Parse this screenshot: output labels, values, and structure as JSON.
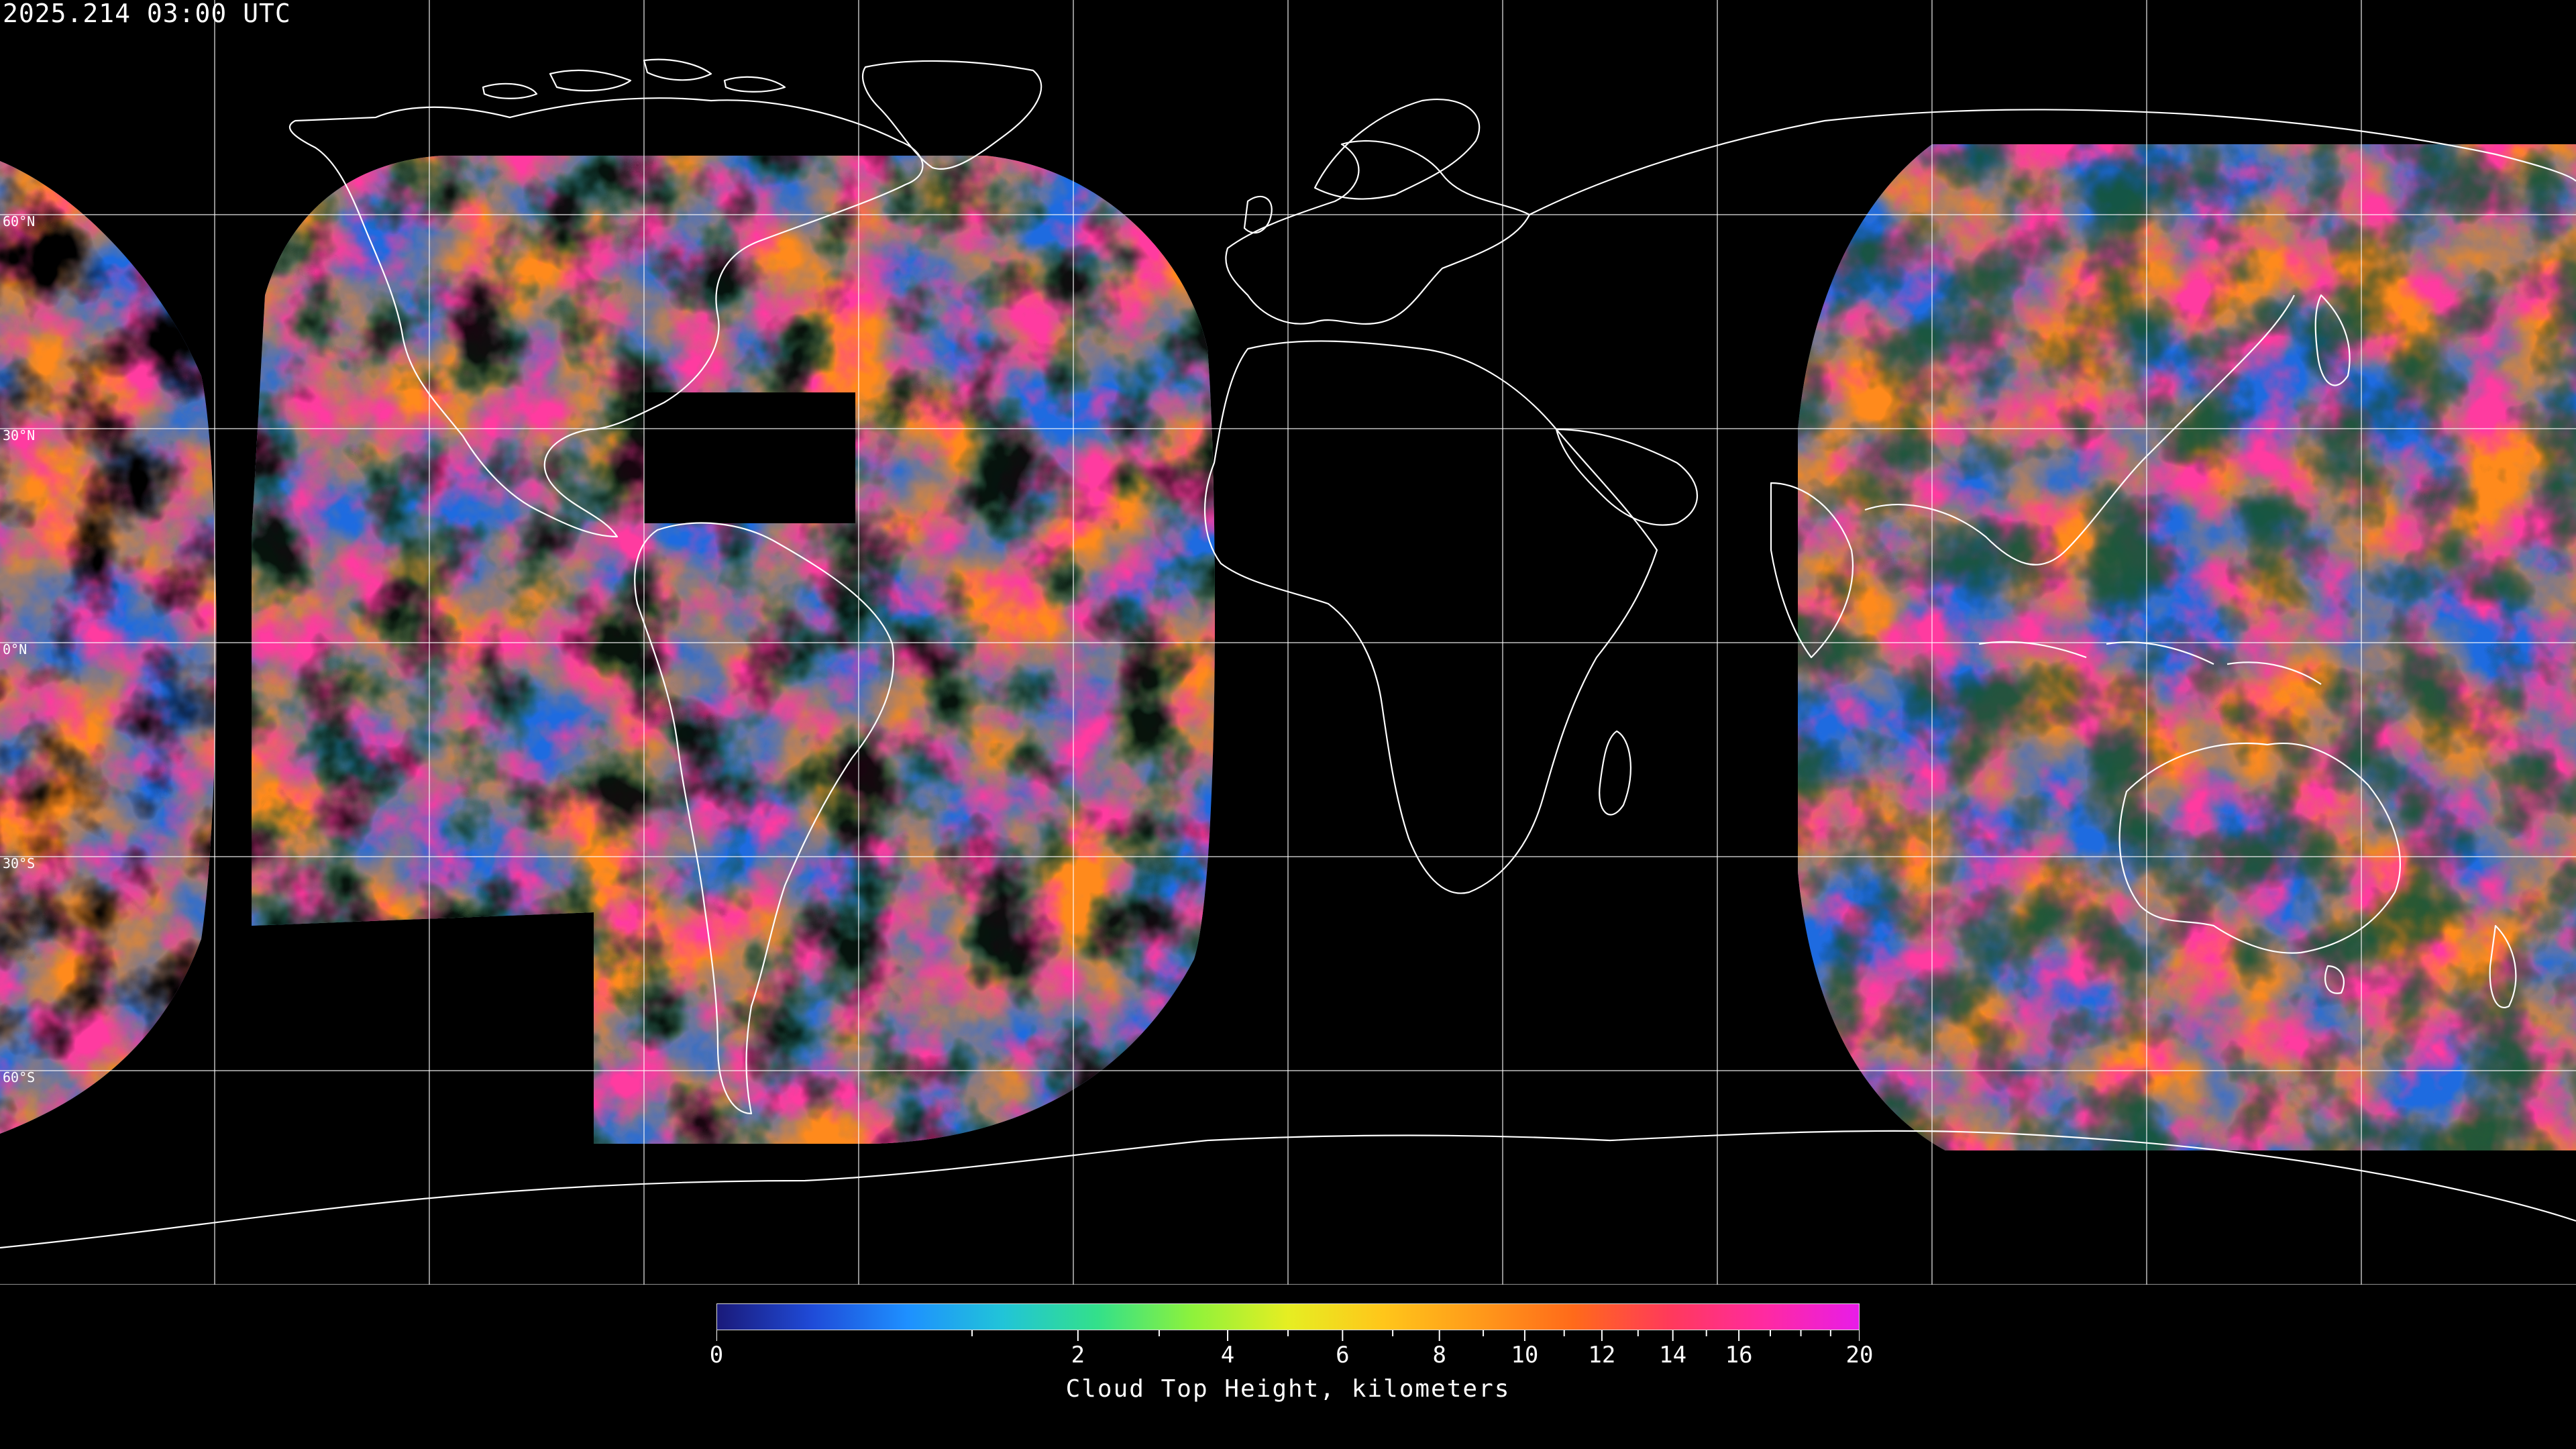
{
  "header": {
    "timestamp": "2025.214 03:00 UTC"
  },
  "map": {
    "projection": "equirectangular",
    "graticule_spacing_deg": 30,
    "lat_labels": [
      "60°N",
      "30°N",
      "0°N",
      "30°S",
      "60°S"
    ],
    "coastline_color": "#ffffff",
    "grid_color": "#ffffff"
  },
  "legend": {
    "title": "Cloud Top Height, kilometers",
    "unit": "kilometers",
    "ticks": [
      "0",
      "2",
      "4",
      "6",
      "8",
      "10",
      "12",
      "14",
      "16",
      "20"
    ],
    "minor_ticks_km": [
      1,
      3,
      5,
      7,
      9,
      11,
      13,
      15,
      17,
      18,
      19
    ],
    "colormap": [
      "#1a1a7a",
      "#1f4bd8",
      "#1e90ff",
      "#21c4d8",
      "#33e08a",
      "#8ef23b",
      "#e6ee22",
      "#ffc61a",
      "#ff9a1a",
      "#ff6a1a",
      "#ff3a5a",
      "#ff2aa0",
      "#e81ce8"
    ]
  },
  "colors": {
    "low_cloud": "#1e6be0",
    "mid_cloud": "#33d88a",
    "high_cloud": "#ff8a1a",
    "very_high_cloud": "#ff3aa0",
    "background": "#000000"
  }
}
